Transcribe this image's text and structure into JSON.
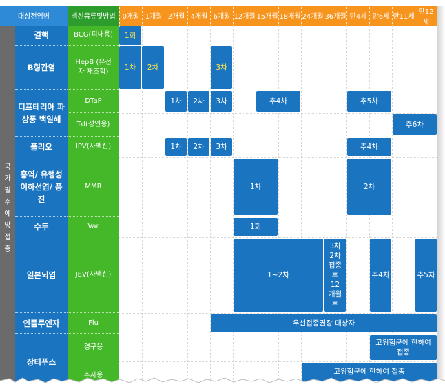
{
  "header": {
    "disease": "대상전염병",
    "vaccine": "백신종류및방법",
    "ages": [
      "0개월",
      "1개월",
      "2개월",
      "4개월",
      "6개월",
      "12개월",
      "15개월",
      "18개월",
      "24개월",
      "36개월",
      "만4세",
      "만6세",
      "만11세",
      "만12세"
    ]
  },
  "category": [
    "국",
    "가",
    "필",
    "수",
    "예",
    "방",
    "접",
    "종"
  ],
  "rows": [
    {
      "disease": "결핵",
      "vaccine": "BCG(피내용)"
    },
    {
      "disease": "B형간염",
      "vaccine": "HepB (유전자 재조합)"
    },
    {
      "disease": "디프테리아 파상풍 백일해",
      "vaccine": "DTaP"
    },
    {
      "disease": "",
      "vaccine": "Td(성인용)"
    },
    {
      "disease": "폴리오",
      "vaccine": "IPV(사백신)"
    },
    {
      "disease": "홍역/ 유행성 이하선염/ 풍진",
      "vaccine": "MMR"
    },
    {
      "disease": "수두",
      "vaccine": "Var"
    },
    {
      "disease": "일본뇌염",
      "vaccine": "JEV(사백신)"
    },
    {
      "disease": "인플루엔자",
      "vaccine": "Flu"
    },
    {
      "disease": "장티푸스",
      "vaccine": "경구용"
    },
    {
      "disease": "",
      "vaccine": "주사용"
    }
  ],
  "bars": {
    "bcg_1": "1회",
    "hepb_1": "1차",
    "hepb_2": "2차",
    "hepb_3": "3차",
    "dtap_1": "1차",
    "dtap_2": "2차",
    "dtap_3": "3차",
    "dtap_4": "추4차",
    "dtap_5": "추5차",
    "td_6": "추6차",
    "ipv_1": "1차",
    "ipv_2": "2차",
    "ipv_3": "3차",
    "ipv_4": "추4차",
    "mmr_1": "1차",
    "mmr_2": "2차",
    "var_1": "1회",
    "jev_12": "1~2차",
    "jev_3": "3차 2차 접종 후 12 개월 후",
    "jev_4": "추4차",
    "jev_5": "추5차",
    "flu": "우선접종권장 대상자",
    "typhoid_oral": "고위험군에 한하여 접종",
    "typhoid_inj": "고위험군에 한하여 접종"
  },
  "colors": {
    "age_header": "#f7941d",
    "disease": "#1b74bf",
    "vaccine": "#45b82a",
    "bar": "#1b74bf",
    "highlight_text": "#ffe64d",
    "category": "#6b6b6b"
  }
}
